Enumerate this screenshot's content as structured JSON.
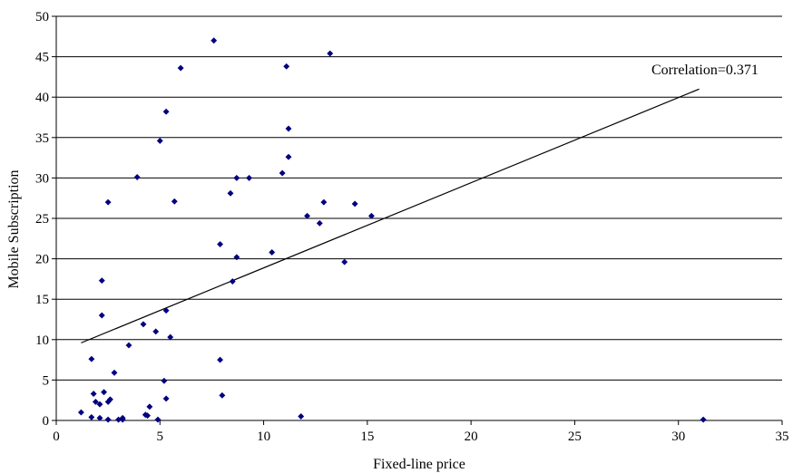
{
  "chart_data": {
    "type": "scatter",
    "title": "",
    "xlabel": "Fixed-line price",
    "ylabel": "Mobile Subscription",
    "xlim": [
      0,
      35
    ],
    "ylim": [
      0,
      50
    ],
    "xticks": [
      0,
      5,
      10,
      15,
      20,
      25,
      30,
      35
    ],
    "yticks": [
      0,
      5,
      10,
      15,
      20,
      25,
      30,
      35,
      40,
      45,
      50
    ],
    "grid": "horizontal",
    "legend": "none",
    "marker_color": "#000080",
    "annotation": "Correlation=0.371",
    "trendline": {
      "x": [
        1.2,
        31.0
      ],
      "y": [
        9.6,
        41.0
      ]
    },
    "series": [
      {
        "points": [
          [
            1.2,
            1.0
          ],
          [
            1.7,
            0.4
          ],
          [
            1.7,
            7.6
          ],
          [
            1.8,
            3.3
          ],
          [
            1.9,
            2.3
          ],
          [
            2.1,
            2.0
          ],
          [
            2.1,
            0.3
          ],
          [
            2.2,
            13.0
          ],
          [
            2.2,
            17.3
          ],
          [
            2.3,
            3.5
          ],
          [
            2.5,
            2.3
          ],
          [
            2.5,
            27.0
          ],
          [
            2.5,
            0.1
          ],
          [
            2.6,
            2.6
          ],
          [
            2.8,
            5.9
          ],
          [
            3.0,
            0.1
          ],
          [
            3.2,
            0.1
          ],
          [
            3.2,
            0.3
          ],
          [
            3.5,
            9.3
          ],
          [
            3.9,
            30.1
          ],
          [
            4.2,
            11.9
          ],
          [
            4.3,
            0.7
          ],
          [
            4.4,
            0.6
          ],
          [
            4.5,
            1.7
          ],
          [
            4.8,
            11.0
          ],
          [
            4.9,
            0.1
          ],
          [
            5.0,
            34.6
          ],
          [
            5.2,
            4.9
          ],
          [
            5.3,
            38.2
          ],
          [
            5.3,
            13.6
          ],
          [
            5.3,
            2.7
          ],
          [
            5.5,
            10.3
          ],
          [
            5.7,
            27.1
          ],
          [
            6.0,
            43.6
          ],
          [
            7.6,
            47.0
          ],
          [
            7.9,
            21.8
          ],
          [
            7.9,
            7.5
          ],
          [
            8.0,
            3.1
          ],
          [
            8.4,
            28.1
          ],
          [
            8.5,
            17.2
          ],
          [
            8.7,
            20.2
          ],
          [
            8.7,
            30.0
          ],
          [
            9.3,
            30.0
          ],
          [
            10.4,
            20.8
          ],
          [
            10.9,
            30.6
          ],
          [
            11.1,
            43.8
          ],
          [
            11.2,
            36.1
          ],
          [
            11.2,
            32.6
          ],
          [
            11.8,
            0.5
          ],
          [
            12.1,
            25.3
          ],
          [
            12.7,
            24.4
          ],
          [
            12.9,
            27.0
          ],
          [
            13.2,
            45.4
          ],
          [
            13.9,
            19.6
          ],
          [
            14.4,
            26.8
          ],
          [
            15.2,
            25.3
          ],
          [
            31.2,
            0.1
          ]
        ]
      }
    ]
  }
}
